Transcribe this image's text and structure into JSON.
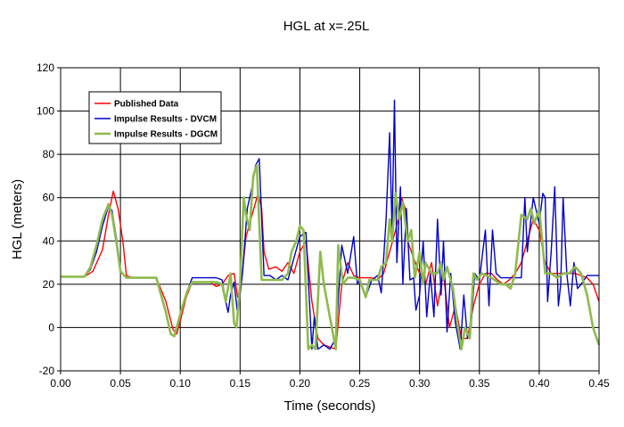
{
  "chart_data": {
    "type": "line",
    "title": "HGL at x=.25L",
    "xlabel": "Time (seconds)",
    "ylabel": "HGL (meters)",
    "xlim": [
      0,
      0.45
    ],
    "ylim": [
      -20,
      120
    ],
    "x_ticks": [
      "0.00",
      "0.05",
      "0.10",
      "0.15",
      "0.20",
      "0.25",
      "0.30",
      "0.35",
      "0.40",
      "0.45"
    ],
    "y_ticks": [
      "-20",
      "0",
      "20",
      "40",
      "60",
      "80",
      "100",
      "120"
    ],
    "grid": true,
    "legend_position": "top-left",
    "series": [
      {
        "name": "Published Data",
        "color": "#ff0000",
        "points": [
          [
            0,
            23.5
          ],
          [
            0.02,
            23.5
          ],
          [
            0.027,
            26
          ],
          [
            0.035,
            36
          ],
          [
            0.04,
            52
          ],
          [
            0.044,
            63
          ],
          [
            0.048,
            55
          ],
          [
            0.052,
            40
          ],
          [
            0.055,
            24
          ],
          [
            0.06,
            23
          ],
          [
            0.08,
            23
          ],
          [
            0.088,
            12
          ],
          [
            0.094,
            -1
          ],
          [
            0.097,
            -3
          ],
          [
            0.1,
            3
          ],
          [
            0.105,
            14
          ],
          [
            0.11,
            21
          ],
          [
            0.125,
            21
          ],
          [
            0.13,
            19
          ],
          [
            0.135,
            20
          ],
          [
            0.14,
            24
          ],
          [
            0.145,
            25
          ],
          [
            0.148,
            14
          ],
          [
            0.15,
            15
          ],
          [
            0.155,
            42
          ],
          [
            0.16,
            52
          ],
          [
            0.165,
            62
          ],
          [
            0.168,
            55
          ],
          [
            0.17,
            35
          ],
          [
            0.174,
            27
          ],
          [
            0.18,
            28
          ],
          [
            0.185,
            26
          ],
          [
            0.19,
            30
          ],
          [
            0.195,
            25
          ],
          [
            0.2,
            35
          ],
          [
            0.205,
            40
          ],
          [
            0.21,
            12
          ],
          [
            0.215,
            -5
          ],
          [
            0.22,
            -8
          ],
          [
            0.225,
            -9
          ],
          [
            0.23,
            -10
          ],
          [
            0.235,
            20
          ],
          [
            0.24,
            30
          ],
          [
            0.245,
            24
          ],
          [
            0.25,
            23
          ],
          [
            0.26,
            23
          ],
          [
            0.265,
            22
          ],
          [
            0.27,
            25
          ],
          [
            0.275,
            35
          ],
          [
            0.28,
            45
          ],
          [
            0.283,
            52
          ],
          [
            0.285,
            60
          ],
          [
            0.288,
            55
          ],
          [
            0.29,
            40
          ],
          [
            0.295,
            32
          ],
          [
            0.3,
            25
          ],
          [
            0.305,
            20
          ],
          [
            0.31,
            30
          ],
          [
            0.315,
            10
          ],
          [
            0.32,
            25
          ],
          [
            0.325,
            0
          ],
          [
            0.33,
            10
          ],
          [
            0.335,
            -5
          ],
          [
            0.34,
            -5
          ],
          [
            0.345,
            10
          ],
          [
            0.35,
            20
          ],
          [
            0.355,
            25
          ],
          [
            0.36,
            25
          ],
          [
            0.365,
            22
          ],
          [
            0.37,
            20
          ],
          [
            0.375,
            22
          ],
          [
            0.38,
            25
          ],
          [
            0.385,
            30
          ],
          [
            0.39,
            40
          ],
          [
            0.395,
            50
          ],
          [
            0.4,
            45
          ],
          [
            0.405,
            30
          ],
          [
            0.41,
            25
          ],
          [
            0.42,
            25
          ],
          [
            0.43,
            25
          ],
          [
            0.44,
            23
          ],
          [
            0.445,
            20
          ],
          [
            0.45,
            12
          ]
        ]
      },
      {
        "name": "Impulse Results - DVCM",
        "color": "#0000cc",
        "points": [
          [
            0,
            23.5
          ],
          [
            0.02,
            23.5
          ],
          [
            0.025,
            27
          ],
          [
            0.03,
            35
          ],
          [
            0.035,
            47
          ],
          [
            0.04,
            56
          ],
          [
            0.043,
            54
          ],
          [
            0.047,
            40
          ],
          [
            0.05,
            26
          ],
          [
            0.055,
            23
          ],
          [
            0.08,
            23
          ],
          [
            0.083,
            17
          ],
          [
            0.088,
            7
          ],
          [
            0.092,
            -3
          ],
          [
            0.095,
            -4
          ],
          [
            0.098,
            2
          ],
          [
            0.102,
            10
          ],
          [
            0.106,
            17
          ],
          [
            0.11,
            23
          ],
          [
            0.13,
            23
          ],
          [
            0.135,
            22
          ],
          [
            0.138,
            12
          ],
          [
            0.14,
            7
          ],
          [
            0.142,
            15
          ],
          [
            0.145,
            21
          ],
          [
            0.148,
            6
          ],
          [
            0.152,
            25
          ],
          [
            0.156,
            55
          ],
          [
            0.16,
            65
          ],
          [
            0.163,
            75
          ],
          [
            0.166,
            78
          ],
          [
            0.17,
            24
          ],
          [
            0.175,
            24
          ],
          [
            0.18,
            22
          ],
          [
            0.185,
            24
          ],
          [
            0.19,
            22
          ],
          [
            0.195,
            32
          ],
          [
            0.2,
            42
          ],
          [
            0.205,
            44
          ],
          [
            0.21,
            -10
          ],
          [
            0.212,
            5
          ],
          [
            0.215,
            -10
          ],
          [
            0.22,
            -8
          ],
          [
            0.225,
            -10
          ],
          [
            0.23,
            -5
          ],
          [
            0.235,
            38
          ],
          [
            0.24,
            25
          ],
          [
            0.245,
            42
          ],
          [
            0.248,
            20
          ],
          [
            0.25,
            22
          ],
          [
            0.255,
            14
          ],
          [
            0.26,
            22
          ],
          [
            0.265,
            24
          ],
          [
            0.268,
            16
          ],
          [
            0.27,
            32
          ],
          [
            0.272,
            50
          ],
          [
            0.275,
            90
          ],
          [
            0.277,
            45
          ],
          [
            0.279,
            105
          ],
          [
            0.281,
            30
          ],
          [
            0.284,
            65
          ],
          [
            0.286,
            20
          ],
          [
            0.289,
            55
          ],
          [
            0.292,
            22
          ],
          [
            0.295,
            23
          ],
          [
            0.297,
            8
          ],
          [
            0.3,
            15
          ],
          [
            0.303,
            40
          ],
          [
            0.306,
            5
          ],
          [
            0.309,
            25
          ],
          [
            0.312,
            5
          ],
          [
            0.315,
            50
          ],
          [
            0.318,
            15
          ],
          [
            0.32,
            40
          ],
          [
            0.323,
            -2
          ],
          [
            0.326,
            25
          ],
          [
            0.33,
            2
          ],
          [
            0.334,
            -10
          ],
          [
            0.337,
            15
          ],
          [
            0.34,
            -5
          ],
          [
            0.343,
            0
          ],
          [
            0.346,
            25
          ],
          [
            0.35,
            22
          ],
          [
            0.355,
            45
          ],
          [
            0.358,
            10
          ],
          [
            0.361,
            45
          ],
          [
            0.364,
            25
          ],
          [
            0.368,
            23
          ],
          [
            0.38,
            23
          ],
          [
            0.385,
            23
          ],
          [
            0.388,
            60
          ],
          [
            0.39,
            35
          ],
          [
            0.395,
            60
          ],
          [
            0.4,
            48
          ],
          [
            0.403,
            62
          ],
          [
            0.405,
            60
          ],
          [
            0.407,
            12
          ],
          [
            0.41,
            35
          ],
          [
            0.413,
            65
          ],
          [
            0.416,
            10
          ],
          [
            0.418,
            20
          ],
          [
            0.42,
            60
          ],
          [
            0.423,
            25
          ],
          [
            0.426,
            10
          ],
          [
            0.429,
            30
          ],
          [
            0.432,
            18
          ],
          [
            0.435,
            20
          ],
          [
            0.44,
            24
          ],
          [
            0.45,
            24
          ]
        ]
      },
      {
        "name": "Impulse Results - DGCM",
        "color": "#8dbb4c",
        "points": [
          [
            0,
            23.5
          ],
          [
            0.02,
            23.5
          ],
          [
            0.025,
            28
          ],
          [
            0.03,
            38
          ],
          [
            0.035,
            50
          ],
          [
            0.04,
            57
          ],
          [
            0.043,
            52
          ],
          [
            0.047,
            38
          ],
          [
            0.05,
            26
          ],
          [
            0.055,
            23
          ],
          [
            0.08,
            23
          ],
          [
            0.083,
            17
          ],
          [
            0.088,
            7
          ],
          [
            0.092,
            -3
          ],
          [
            0.095,
            -4
          ],
          [
            0.098,
            2
          ],
          [
            0.102,
            10
          ],
          [
            0.106,
            17
          ],
          [
            0.11,
            21
          ],
          [
            0.13,
            21
          ],
          [
            0.135,
            20
          ],
          [
            0.138,
            12
          ],
          [
            0.142,
            25
          ],
          [
            0.145,
            2
          ],
          [
            0.147,
            0
          ],
          [
            0.15,
            20
          ],
          [
            0.153,
            60
          ],
          [
            0.155,
            52
          ],
          [
            0.158,
            45
          ],
          [
            0.161,
            70
          ],
          [
            0.164,
            75
          ],
          [
            0.168,
            22
          ],
          [
            0.185,
            22
          ],
          [
            0.19,
            25
          ],
          [
            0.193,
            35
          ],
          [
            0.197,
            40
          ],
          [
            0.2,
            47
          ],
          [
            0.203,
            45
          ],
          [
            0.207,
            -10
          ],
          [
            0.21,
            -8
          ],
          [
            0.213,
            -10
          ],
          [
            0.217,
            35
          ],
          [
            0.22,
            20
          ],
          [
            0.225,
            5
          ],
          [
            0.23,
            -10
          ],
          [
            0.232,
            38
          ],
          [
            0.236,
            20
          ],
          [
            0.24,
            23
          ],
          [
            0.245,
            23
          ],
          [
            0.25,
            22
          ],
          [
            0.255,
            14
          ],
          [
            0.258,
            22
          ],
          [
            0.265,
            22
          ],
          [
            0.268,
            28
          ],
          [
            0.272,
            30
          ],
          [
            0.275,
            50
          ],
          [
            0.277,
            40
          ],
          [
            0.28,
            62
          ],
          [
            0.283,
            50
          ],
          [
            0.286,
            58
          ],
          [
            0.29,
            40
          ],
          [
            0.293,
            45
          ],
          [
            0.296,
            23
          ],
          [
            0.3,
            35
          ],
          [
            0.303,
            20
          ],
          [
            0.305,
            30
          ],
          [
            0.31,
            25
          ],
          [
            0.315,
            25
          ],
          [
            0.318,
            30
          ],
          [
            0.32,
            22
          ],
          [
            0.323,
            28
          ],
          [
            0.328,
            18
          ],
          [
            0.332,
            0
          ],
          [
            0.335,
            -10
          ],
          [
            0.338,
            0
          ],
          [
            0.342,
            -5
          ],
          [
            0.345,
            25
          ],
          [
            0.348,
            22
          ],
          [
            0.352,
            25
          ],
          [
            0.36,
            23
          ],
          [
            0.368,
            20
          ],
          [
            0.372,
            20
          ],
          [
            0.376,
            18
          ],
          [
            0.38,
            25
          ],
          [
            0.385,
            52
          ],
          [
            0.39,
            50
          ],
          [
            0.393,
            55
          ],
          [
            0.396,
            48
          ],
          [
            0.4,
            55
          ],
          [
            0.405,
            25
          ],
          [
            0.41,
            25
          ],
          [
            0.415,
            23
          ],
          [
            0.42,
            25
          ],
          [
            0.425,
            25
          ],
          [
            0.43,
            28
          ],
          [
            0.435,
            25
          ],
          [
            0.44,
            15
          ],
          [
            0.445,
            0
          ],
          [
            0.448,
            -5
          ],
          [
            0.45,
            -8
          ]
        ]
      }
    ]
  }
}
